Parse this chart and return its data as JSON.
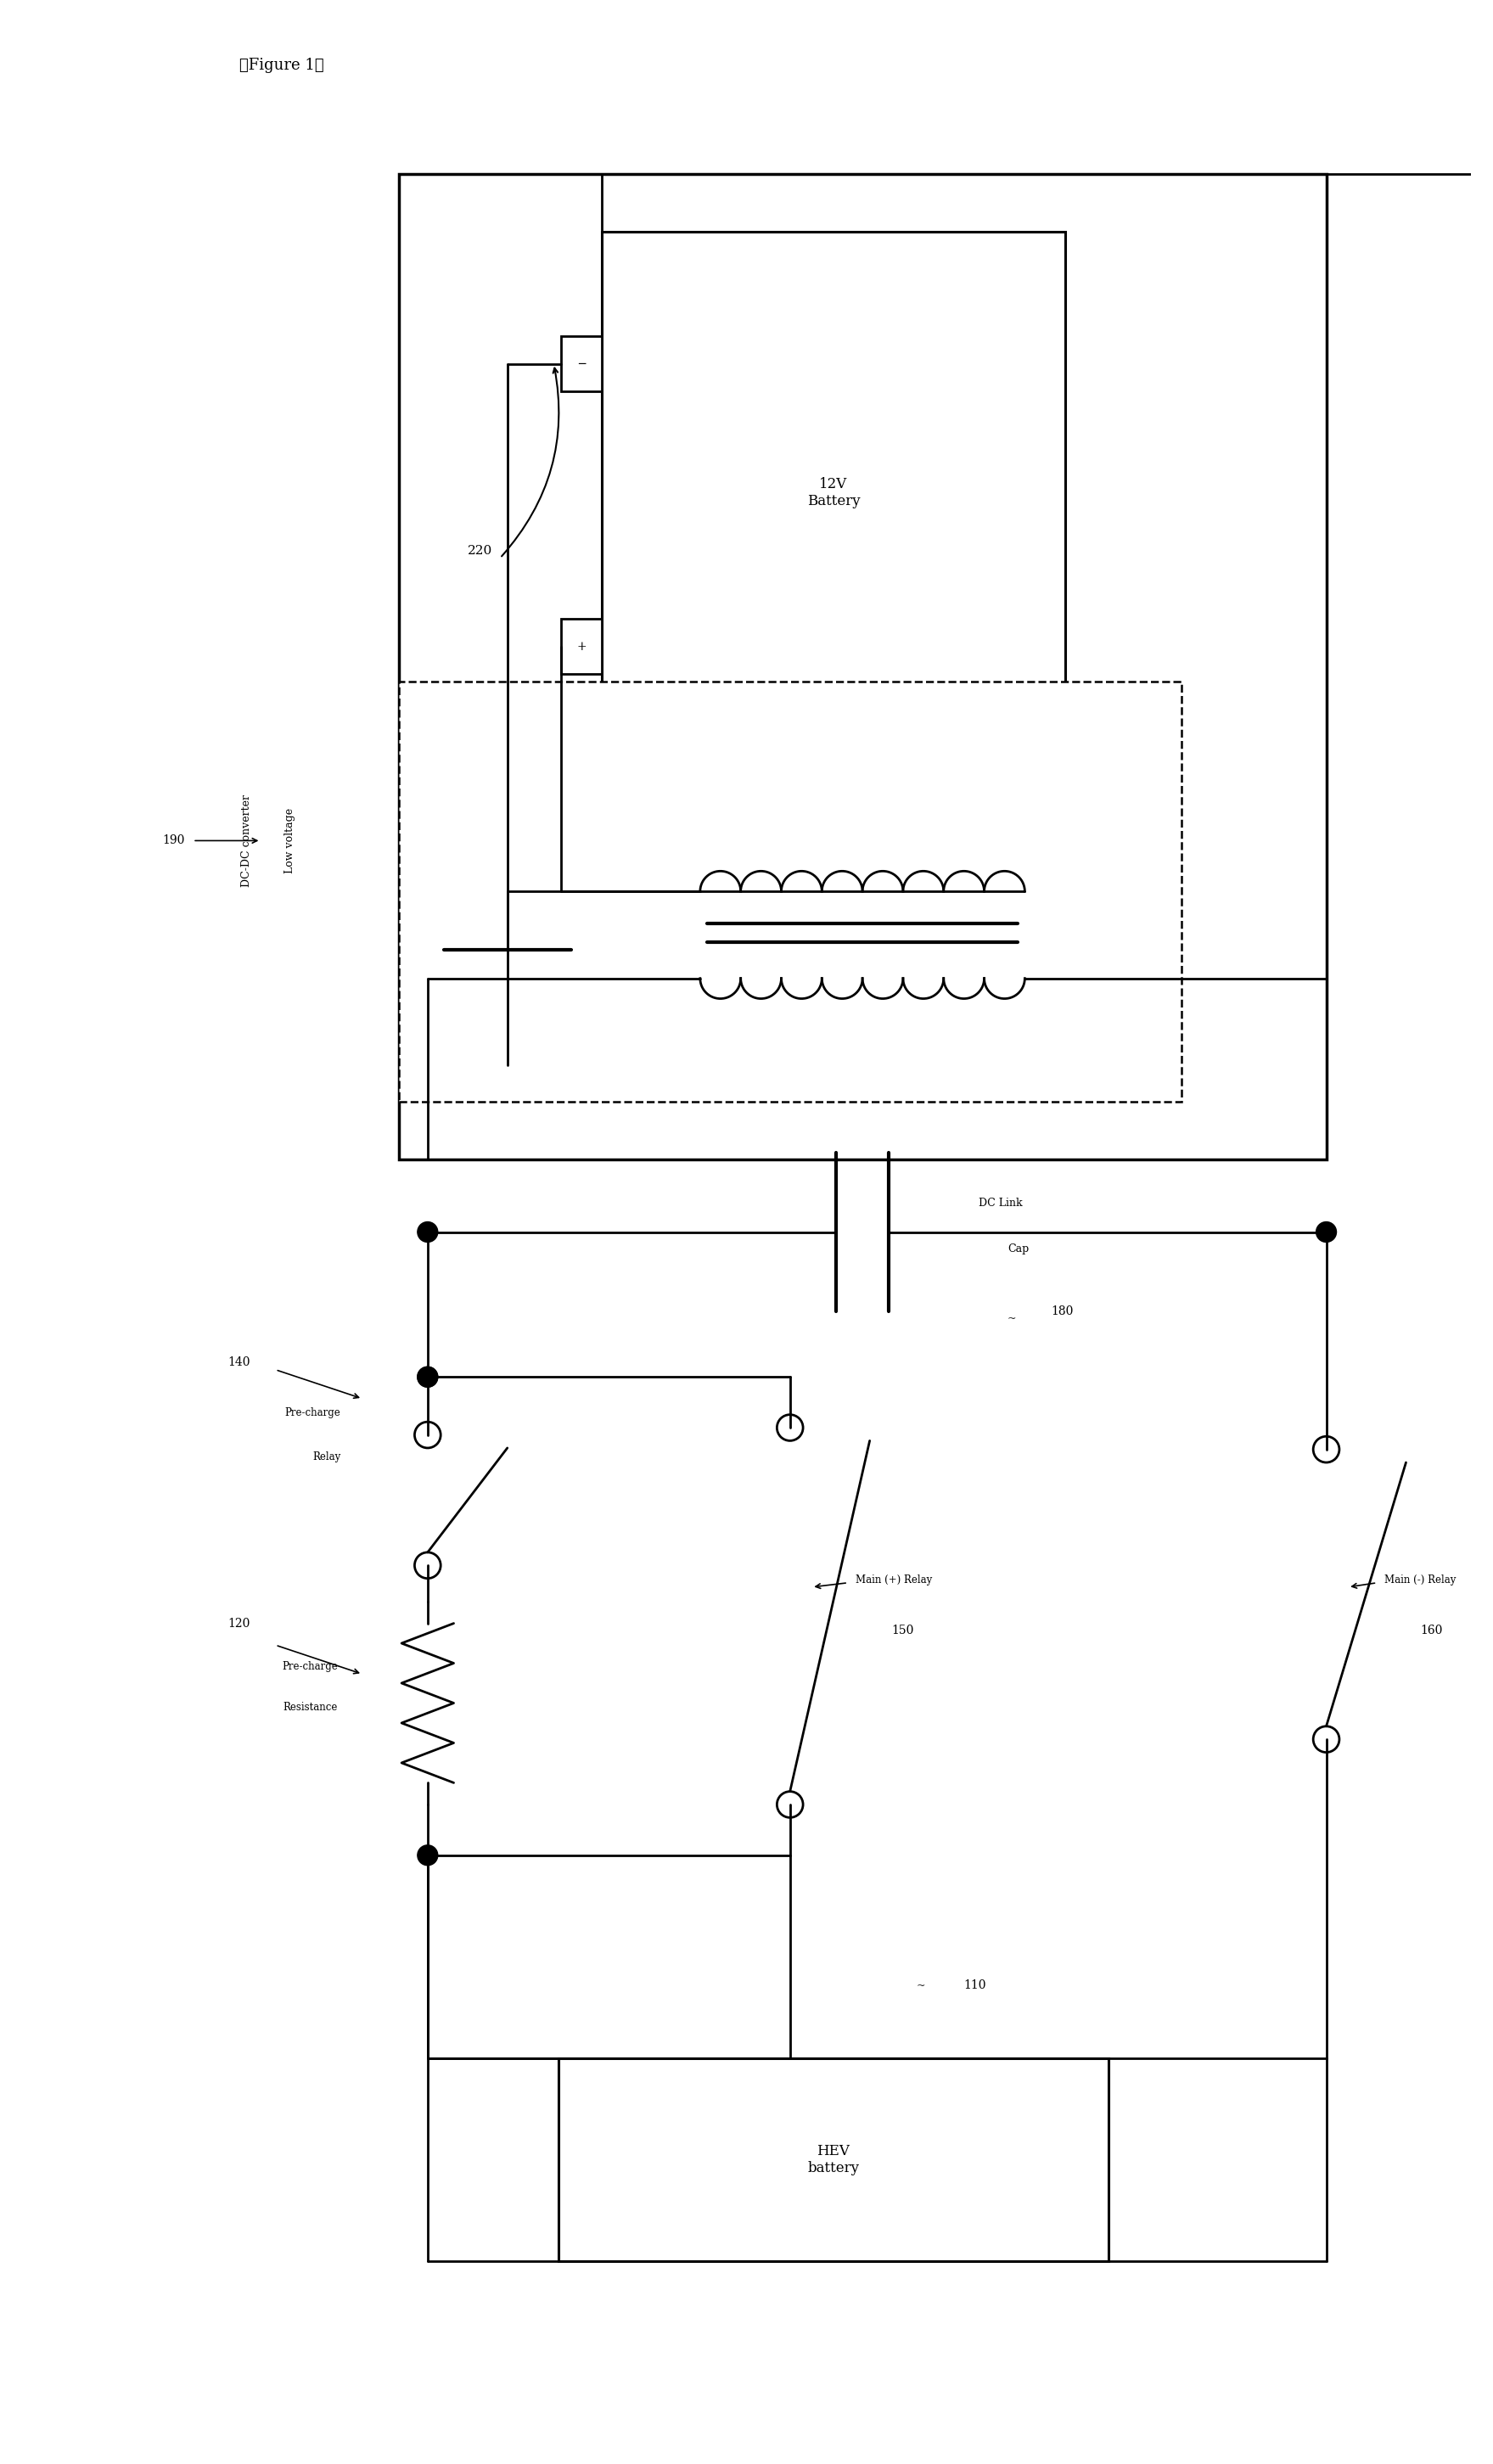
{
  "bg": "#ffffff",
  "lc": "#000000",
  "labels": {
    "fig": "【Figure 1】",
    "batt12_1": "12V",
    "batt12_2": "Battery",
    "hev": "HEV\nbattery",
    "lv_dc1": "Low voltage",
    "lv_dc2": "DC-DC converter",
    "dc_link1": "DC Link",
    "dc_link2": "Cap",
    "pcr1": "Pre-charge",
    "pcr2": "Relay",
    "pcres1": "Pre-charge",
    "pcres2": "Resistance",
    "mpr": "Main (+) Relay",
    "mnr": "Main (-) Relay",
    "n220": "220",
    "n190": "190",
    "n180": "180",
    "n140": "140",
    "n120": "120",
    "n150": "150",
    "n160": "160",
    "n110": "110"
  }
}
